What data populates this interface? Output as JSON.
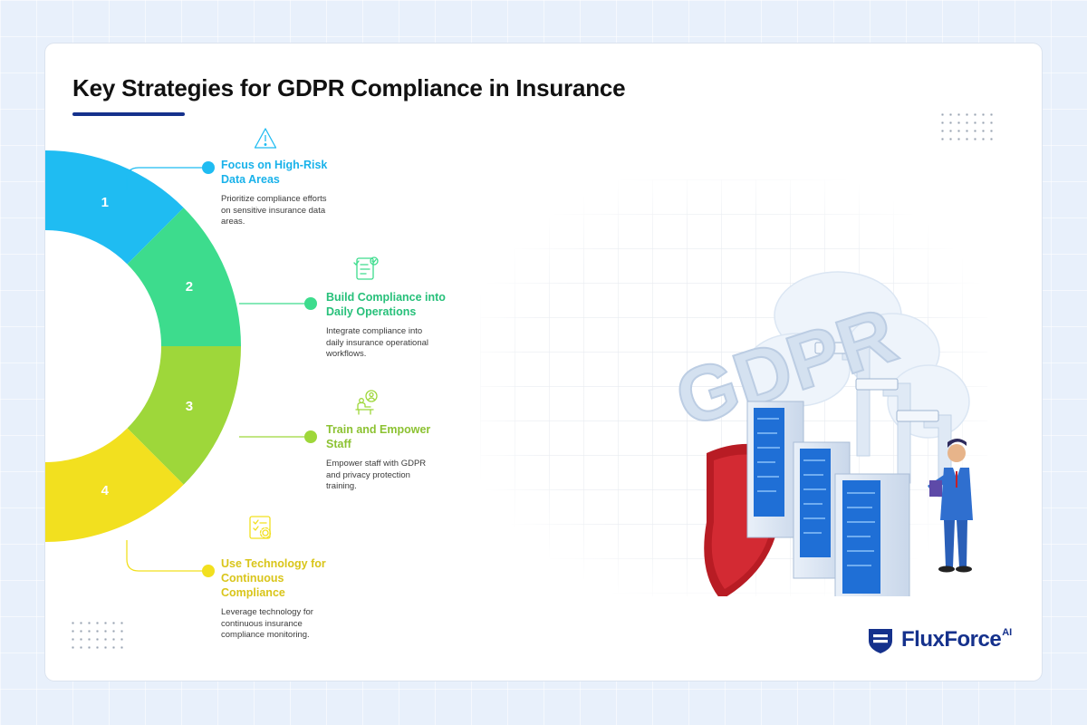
{
  "title": "Key Strategies for GDPR Compliance in Insurance",
  "steps": [
    {
      "number": "1",
      "heading_l1": "Focus on High-Risk",
      "heading_l2": "Data Areas",
      "heading_l3": "",
      "desc_l1": "Prioritize compliance efforts",
      "desc_l2": "on sensitive insurance data",
      "desc_l3": "areas.",
      "color": "#1fbcf2",
      "icon": "warning-triangle-icon"
    },
    {
      "number": "2",
      "heading_l1": "Build Compliance into",
      "heading_l2": "Daily Operations",
      "heading_l3": "",
      "desc_l1": "Integrate compliance into",
      "desc_l2": "daily insurance operational",
      "desc_l3": "workflows.",
      "color": "#3ddc8d",
      "icon": "checklist-document-icon"
    },
    {
      "number": "3",
      "heading_l1": "Train and Empower",
      "heading_l2": "Staff",
      "heading_l3": "",
      "desc_l1": "Empower staff with GDPR",
      "desc_l2": "and privacy protection",
      "desc_l3": "training.",
      "color": "#9ed73a",
      "icon": "person-desk-icon"
    },
    {
      "number": "4",
      "heading_l1": "Use Technology for",
      "heading_l2": "Continuous",
      "heading_l3": "Compliance",
      "desc_l1": "Leverage technology for",
      "desc_l2": "continuous insurance",
      "desc_l3": "compliance monitoring.",
      "color": "#f2e01f",
      "icon": "gear-document-icon"
    }
  ],
  "heading_colors": [
    "#19b2ea",
    "#27c07a",
    "#8cc232",
    "#d9c51a"
  ],
  "illustration": {
    "text": "GDPR"
  },
  "logo": {
    "name": "FluxForce",
    "suffix": "AI",
    "color": "#15318c"
  }
}
